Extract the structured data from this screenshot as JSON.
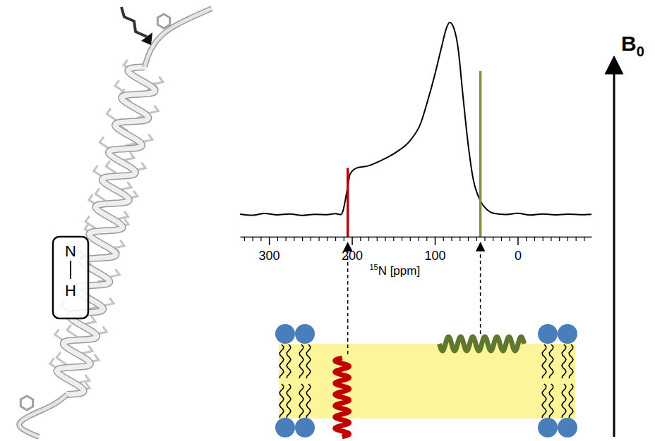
{
  "chart_data": {
    "type": "line",
    "x": [
      335,
      320,
      305,
      290,
      275,
      260,
      245,
      230,
      220,
      213,
      211,
      206,
      202,
      194,
      181,
      164,
      147,
      130,
      117,
      109,
      100,
      92,
      86,
      82,
      77,
      72,
      66,
      60,
      54,
      45,
      37,
      28,
      15,
      0,
      -15,
      -30,
      -45,
      -60,
      -75,
      -89
    ],
    "values": [
      1.2,
      0.6,
      1.5,
      0.8,
      1.3,
      0.5,
      1.1,
      0.9,
      1.4,
      1.0,
      2.5,
      13,
      22,
      25,
      26,
      29,
      33,
      39,
      48,
      59,
      73,
      87,
      97,
      100,
      97,
      87,
      62,
      38,
      20,
      8,
      3.5,
      1.5,
      1.0,
      1.6,
      0.7,
      1.3,
      0.8,
      1.2,
      0.9,
      1.1
    ],
    "color": "#000000",
    "xlim": [
      335,
      -89
    ],
    "ylim": [
      -5,
      105
    ],
    "xticks": [
      300,
      200,
      100,
      0
    ],
    "xticks_minor": [
      330,
      320,
      310,
      290,
      280,
      270,
      260,
      250,
      240,
      230,
      220,
      210,
      190,
      180,
      170,
      160,
      150,
      140,
      130,
      120,
      110,
      90,
      80,
      70,
      60,
      50,
      40,
      30,
      20,
      10,
      -10,
      -20,
      -30,
      -40,
      -50,
      -60,
      -70,
      -80
    ],
    "xlabel": {
      "superscript": "15",
      "text": "N [ppm]"
    },
    "tick_labels": "x",
    "annotations": [
      {
        "x": 205,
        "y_top": 25,
        "color": "#c00000"
      },
      {
        "x": 45,
        "y_top": 75,
        "color": "#77933c"
      }
    ]
  },
  "diagram": {
    "structure_label": {
      "atom1": "N",
      "atom2": "H"
    },
    "field": {
      "symbol": "B",
      "subscript": "0"
    }
  }
}
